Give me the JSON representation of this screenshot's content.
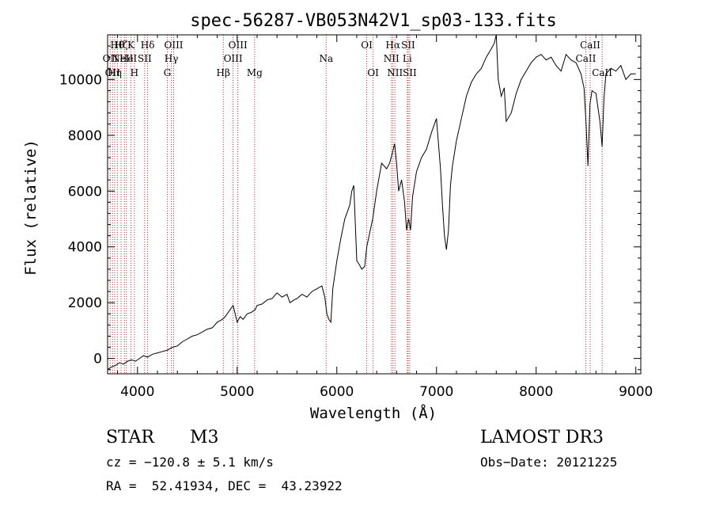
{
  "chart_data": {
    "type": "line",
    "title": "spec-56287-VB053N42V1_sp03-133.fits",
    "xlabel": "Wavelength (Å)",
    "ylabel": "Flux (relative)",
    "xlim": [
      3700,
      9050
    ],
    "ylim": [
      -550,
      11600
    ],
    "xticks": [
      4000,
      5000,
      6000,
      7000,
      8000,
      9000
    ],
    "yticks": [
      0,
      2000,
      4000,
      6000,
      8000,
      10000
    ],
    "line_color": "#000000",
    "marker_color": "#b03030",
    "series": [
      {
        "name": "flux",
        "x": [
          3700,
          3740,
          3780,
          3820,
          3860,
          3900,
          3940,
          3980,
          4020,
          4060,
          4100,
          4150,
          4200,
          4250,
          4300,
          4350,
          4400,
          4450,
          4500,
          4550,
          4600,
          4650,
          4700,
          4750,
          4800,
          4850,
          4880,
          4920,
          4960,
          5000,
          5030,
          5060,
          5100,
          5140,
          5180,
          5200,
          5250,
          5300,
          5350,
          5400,
          5450,
          5500,
          5530,
          5570,
          5600,
          5650,
          5700,
          5750,
          5800,
          5850,
          5880,
          5900,
          5920,
          5940,
          5960,
          5980,
          6000,
          6040,
          6080,
          6100,
          6130,
          6150,
          6170,
          6200,
          6220,
          6250,
          6280,
          6300,
          6330,
          6360,
          6400,
          6450,
          6500,
          6530,
          6560,
          6580,
          6600,
          6620,
          6650,
          6680,
          6700,
          6720,
          6740,
          6760,
          6800,
          6850,
          6900,
          6950,
          7000,
          7040,
          7060,
          7080,
          7100,
          7120,
          7140,
          7160,
          7200,
          7250,
          7300,
          7350,
          7400,
          7450,
          7500,
          7550,
          7580,
          7600,
          7620,
          7650,
          7680,
          7700,
          7750,
          7800,
          7850,
          7900,
          7950,
          8000,
          8050,
          8100,
          8150,
          8200,
          8250,
          8300,
          8350,
          8400,
          8450,
          8480,
          8500,
          8520,
          8540,
          8560,
          8600,
          8640,
          8662,
          8680,
          8700,
          8750,
          8800,
          8850,
          8900,
          8950,
          9000
        ],
        "values": [
          -400,
          -300,
          -250,
          -150,
          -200,
          -100,
          -50,
          -100,
          0,
          100,
          50,
          150,
          200,
          250,
          300,
          400,
          450,
          600,
          700,
          800,
          850,
          950,
          1050,
          1100,
          1300,
          1400,
          1500,
          1700,
          1900,
          1300,
          1500,
          1400,
          1600,
          1650,
          1750,
          1900,
          1950,
          2100,
          2150,
          2350,
          2200,
          2300,
          2000,
          2100,
          2150,
          2300,
          2200,
          2400,
          2500,
          2600,
          2200,
          1600,
          1400,
          1300,
          2500,
          3000,
          3500,
          4300,
          5000,
          5200,
          5500,
          6000,
          6200,
          3500,
          3400,
          3200,
          3300,
          4000,
          4500,
          5000,
          6000,
          7000,
          6800,
          7000,
          7400,
          7700,
          7000,
          6000,
          6400,
          5600,
          4600,
          5000,
          4600,
          5800,
          6700,
          7200,
          7500,
          8100,
          8600,
          6800,
          5500,
          4400,
          3900,
          4600,
          6200,
          6900,
          7800,
          8600,
          9400,
          9900,
          10200,
          10400,
          10800,
          11100,
          11300,
          11600,
          10000,
          9400,
          9700,
          8500,
          8800,
          9500,
          10000,
          10300,
          10600,
          10800,
          10900,
          10700,
          10800,
          10500,
          10300,
          10900,
          10700,
          10600,
          10200,
          9700,
          8500,
          6900,
          9100,
          9600,
          9500,
          8500,
          7600,
          9300,
          10200,
          10400,
          10300,
          10500,
          10000,
          10200,
          10200
        ]
      }
    ],
    "lines": [
      {
        "wl": 3726,
        "label": "OII",
        "row": 1
      },
      {
        "wl": 3750,
        "label": "OII",
        "row": 2
      },
      {
        "wl": 3771,
        "label": "Hη",
        "row": 2
      },
      {
        "wl": 3798,
        "label": "Hθ",
        "row": 0
      },
      {
        "wl": 3835,
        "label": "Hζ",
        "row": 0
      },
      {
        "wl": 3869,
        "label": "NeIII",
        "row": 1
      },
      {
        "wl": 3889,
        "label": "He",
        "row": 1
      },
      {
        "wl": 3934,
        "label": "K",
        "row": 0
      },
      {
        "wl": 3969,
        "label": "H",
        "row": 2
      },
      {
        "wl": 4072,
        "label": "SII",
        "row": 1
      },
      {
        "wl": 4102,
        "label": "Hδ",
        "row": 0
      },
      {
        "wl": 4300,
        "label": "G",
        "row": 2
      },
      {
        "wl": 4340,
        "label": "Hγ",
        "row": 1
      },
      {
        "wl": 4363,
        "label": "OIII",
        "row": 0
      },
      {
        "wl": 4861,
        "label": "Hβ",
        "row": 2
      },
      {
        "wl": 4959,
        "label": "OIII",
        "row": 1
      },
      {
        "wl": 5007,
        "label": "OIII",
        "row": 0
      },
      {
        "wl": 5175,
        "label": "Mg",
        "row": 2
      },
      {
        "wl": 5893,
        "label": "Na",
        "row": 1
      },
      {
        "wl": 6300,
        "label": "OI",
        "row": 0
      },
      {
        "wl": 6364,
        "label": "OI",
        "row": 2
      },
      {
        "wl": 6548,
        "label": "NII",
        "row": 1
      },
      {
        "wl": 6563,
        "label": "Hα",
        "row": 0
      },
      {
        "wl": 6583,
        "label": "NII",
        "row": 2
      },
      {
        "wl": 6707,
        "label": "Li",
        "row": 1
      },
      {
        "wl": 6716,
        "label": "SII",
        "row": 0
      },
      {
        "wl": 6731,
        "label": "SII",
        "row": 2
      },
      {
        "wl": 8498,
        "label": "CaII",
        "row": 1
      },
      {
        "wl": 8542,
        "label": "CaII",
        "row": 0
      },
      {
        "wl": 8662,
        "label": "CaII",
        "row": 2
      }
    ]
  },
  "info": {
    "object_class": "STAR",
    "subclass": "M3",
    "survey": "LAMOST DR3",
    "cz": "cz = −120.8 ± 5.1 km/s",
    "obs_date": "Obs−Date: 20121225",
    "coords": "RA =  52.41934, DEC =  43.23922"
  }
}
